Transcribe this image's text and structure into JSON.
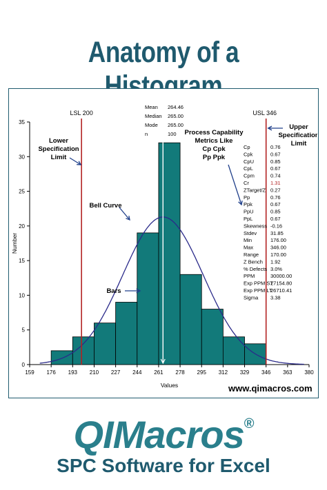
{
  "header": {
    "title": "Anatomy of a Histogram"
  },
  "footer": {
    "website": "www.qimacros.com",
    "logo_text": "QIMacros",
    "logo_mark": "®",
    "tagline": "SPC Software for Excel"
  },
  "colors": {
    "title": "#1f5a6e",
    "bar": "#127a7a",
    "curve": "#2a2a8a",
    "spec": "#b22222",
    "logo": "#2a7f8c"
  },
  "chart_data": {
    "type": "bar",
    "xlabel": "Values",
    "ylabel": "Number",
    "xlim": [
      159,
      380
    ],
    "ylim": [
      0,
      35
    ],
    "xticks": [
      159,
      176,
      193,
      210,
      227,
      244,
      261,
      278,
      295,
      312,
      329,
      346,
      363,
      380
    ],
    "yticks": [
      0,
      5,
      10,
      15,
      20,
      25,
      30,
      35
    ],
    "bin_edges": [
      176,
      193,
      210,
      227,
      244,
      261,
      278,
      295,
      312,
      329,
      346
    ],
    "values": [
      2,
      4,
      6,
      9,
      19,
      32,
      13,
      8,
      4,
      3
    ],
    "normal_curve": {
      "mean": 264.46,
      "stdev": 31.85,
      "n": 100,
      "bin_width": 17
    },
    "lsl": {
      "label": "LSL 200",
      "value": 200
    },
    "usl": {
      "label": "USL 346",
      "value": 346
    },
    "mean_line": 264.46,
    "summary": [
      {
        "label": "Mean",
        "value": "264.46"
      },
      {
        "label": "Median",
        "value": "265.00"
      },
      {
        "label": "Mode",
        "value": "265.00"
      },
      {
        "label": "n",
        "value": "100"
      }
    ],
    "metrics": [
      {
        "label": "Cp",
        "value": "0.76"
      },
      {
        "label": "Cpk",
        "value": "0.67"
      },
      {
        "label": "CpU",
        "value": "0.85"
      },
      {
        "label": "CpL",
        "value": "0.67"
      },
      {
        "label": "Cpm",
        "value": "0.74"
      },
      {
        "label": "Cr",
        "value": "1.31",
        "highlight": true
      },
      {
        "label": "ZTarget/Z",
        "value": "0.27"
      },
      {
        "label": "Pp",
        "value": "0.76"
      },
      {
        "label": "Ppk",
        "value": "0.67"
      },
      {
        "label": "PpU",
        "value": "0.85"
      },
      {
        "label": "PpL",
        "value": "0.67"
      },
      {
        "label": "Skewness",
        "value": "-0.16"
      },
      {
        "label": "Stdev",
        "value": "31.85"
      },
      {
        "label": "Min",
        "value": "176.00"
      },
      {
        "label": "Max",
        "value": "346.00"
      },
      {
        "label": "Range",
        "value": "170.00"
      },
      {
        "label": "Z Bench",
        "value": "1.92"
      },
      {
        "label": "% Defects",
        "value": "3.0%"
      },
      {
        "label": "PPM",
        "value": "30000.00"
      },
      {
        "label": "Exp PPM ST",
        "value": "27154.80"
      },
      {
        "label": "Exp PPM LT",
        "value": "26710.41"
      },
      {
        "label": "Sigma",
        "value": "3.38"
      }
    ],
    "annotations": {
      "lower_spec": [
        "Lower",
        "Specification",
        "Limit"
      ],
      "upper_spec": [
        "Upper",
        "Specification",
        "Limit"
      ],
      "bell_curve": "Bell Curve",
      "bars": "Bars",
      "capability": [
        "Process Capability",
        "Metrics Like",
        "Cp Cpk",
        "Pp Ppk"
      ]
    }
  }
}
